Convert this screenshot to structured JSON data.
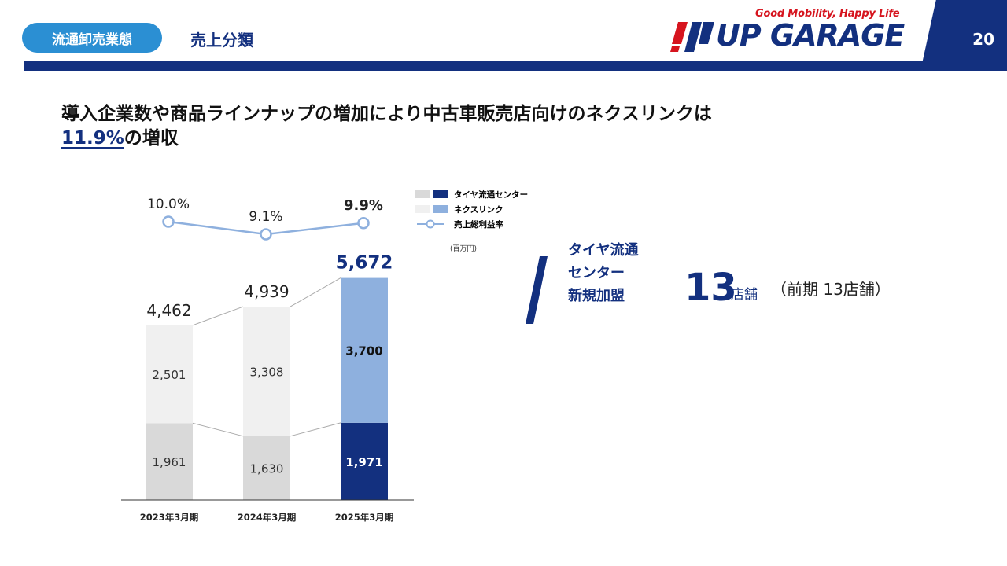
{
  "header": {
    "section_label": "流通卸売業態",
    "subtitle": "売上分類",
    "page_number": "20",
    "logo_tagline": "Good Mobility, Happy Life",
    "logo_text": "UP GARAGE",
    "brand_color": "#13307f",
    "accent_color": "#2b8fd3"
  },
  "headline": {
    "line1": "導入企業数や商品ラインナップの増加により中古車販売店向けのネクスリンクは",
    "percent": "11.9%",
    "line2_suffix": "の増収"
  },
  "legend": {
    "items": [
      {
        "label": "タイヤ流通センター"
      },
      {
        "label": "ネクスリンク"
      },
      {
        "label": "売上総利益率"
      }
    ],
    "unit": "(百万円)"
  },
  "chart_data": {
    "type": "bar",
    "stacked": true,
    "categories": [
      "2023年3月期",
      "2024年3月期",
      "2025年3月期"
    ],
    "series": [
      {
        "name": "タイヤ流通センター",
        "values": [
          1961,
          1630,
          1971
        ],
        "colors": [
          "#d9d9d9",
          "#d9d9d9",
          "#13307f"
        ]
      },
      {
        "name": "ネクスリンク",
        "values": [
          2501,
          3308,
          3700
        ],
        "colors": [
          "#f0f0f0",
          "#f0f0f0",
          "#8eb0de"
        ]
      }
    ],
    "totals": [
      "4,462",
      "4,939",
      "5,672"
    ],
    "value_labels": {
      "タイヤ流通センター": [
        "1,961",
        "1,630",
        "1,971"
      ],
      "ネクスリンク": [
        "2,501",
        "3,308",
        "3,700"
      ]
    },
    "line_series": {
      "name": "売上総利益率",
      "values": [
        10.0,
        9.1,
        9.9
      ],
      "labels": [
        "10.0%",
        "9.1%",
        "9.9%"
      ],
      "color": "#8eb0de"
    }
  },
  "panel": {
    "title_lines": [
      "タイヤ流通",
      "センター",
      "新規加盟"
    ],
    "count": "13",
    "unit": "店舗",
    "previous": "（前期 13店舗）"
  }
}
